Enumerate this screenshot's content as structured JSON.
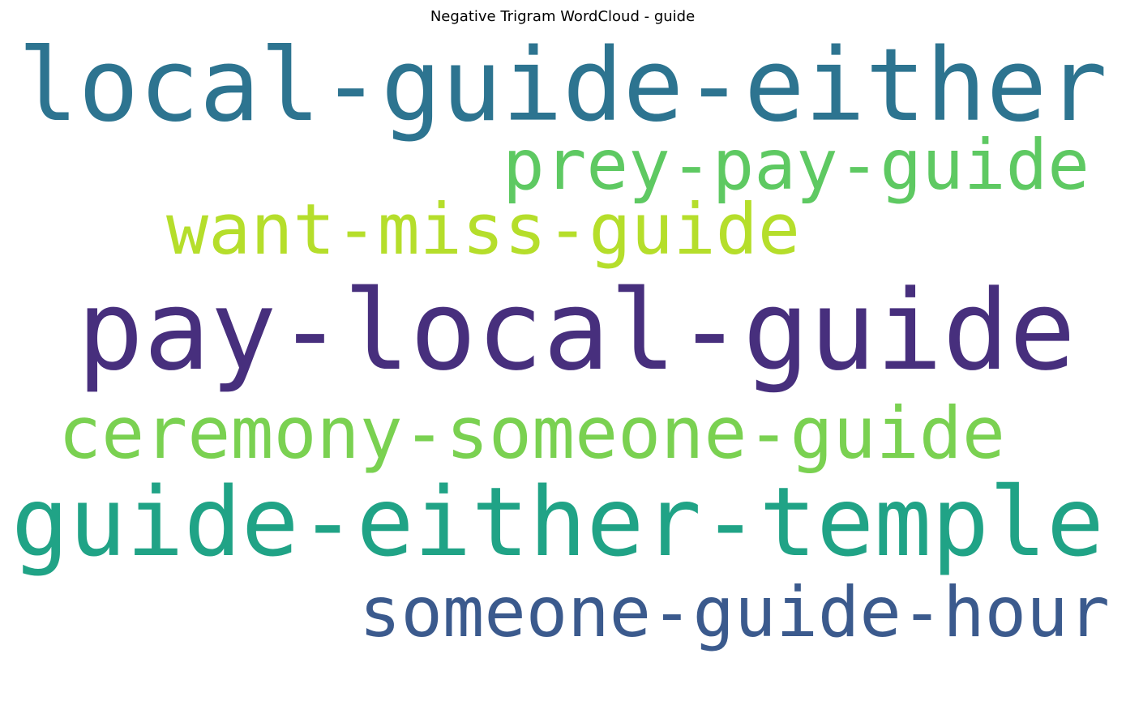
{
  "chart_data": {
    "type": "wordcloud",
    "title": "Negative Trigram WordCloud - guide",
    "words": [
      {
        "text": "local-guide-either",
        "weight": 1.0,
        "color": "#2d7490"
      },
      {
        "text": "pay-local-guide",
        "weight": 1.0,
        "color": "#472f7d"
      },
      {
        "text": "guide-either-temple",
        "weight": 0.85,
        "color": "#20a386"
      },
      {
        "text": "someone-guide-hour",
        "weight": 0.65,
        "color": "#3b5a8d"
      },
      {
        "text": "prey-pay-guide",
        "weight": 0.6,
        "color": "#5ec962"
      },
      {
        "text": "ceremony-someone-guide",
        "weight": 0.6,
        "color": "#7ad151"
      },
      {
        "text": "want-miss-guide",
        "weight": 0.6,
        "color": "#b5de2b"
      }
    ]
  }
}
